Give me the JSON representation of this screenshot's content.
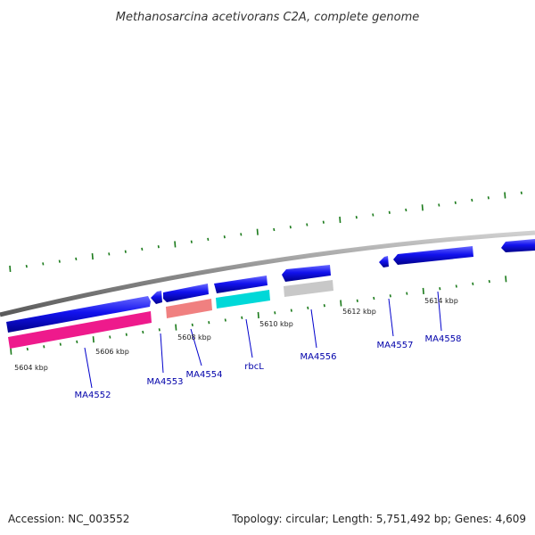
{
  "title": "Methanosarcina acetivorans C2A, complete genome",
  "footer": {
    "accession": "Accession: NC_003552",
    "topology": "Topology: circular; Length: 5,751,492 bp; Genes: 4,609"
  },
  "colors": {
    "gene": "#1010e8",
    "backbone": "#808080",
    "tick": "#1a7a1a",
    "label": "#0000aa",
    "leader": "#0000cc"
  },
  "scale_labels": [
    "5604 kbp",
    "5606 kbp",
    "5608 kbp",
    "5610 kbp",
    "5612 kbp",
    "5614 kbp"
  ],
  "genes": [
    {
      "name": "MA4552",
      "product_color": "#ee1a8c"
    },
    {
      "name": "MA4553",
      "product_color": null
    },
    {
      "name": "MA4554",
      "product_color": "#f08080"
    },
    {
      "name": "rbcL",
      "product_color": "#00d8d8"
    },
    {
      "name": "MA4556",
      "product_color": "#c8c8c8"
    },
    {
      "name": "MA4557",
      "product_color": null
    },
    {
      "name": "MA4558",
      "product_color": null
    }
  ]
}
